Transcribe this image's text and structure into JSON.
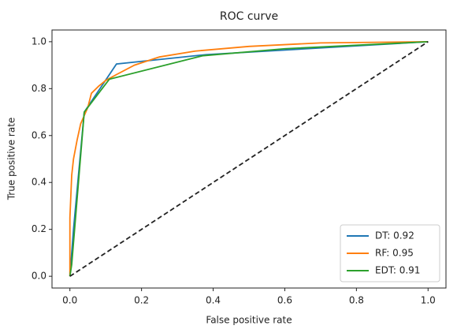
{
  "chart_data": {
    "type": "line",
    "title": "ROC curve",
    "xlabel": "False positive rate",
    "ylabel": "True positive rate",
    "xlim": [
      -0.05,
      1.05
    ],
    "ylim": [
      -0.05,
      1.05
    ],
    "xticks": [
      {
        "value": 0,
        "label": "0.0"
      },
      0.2,
      0.4,
      0.6,
      0.8,
      {
        "value": 1,
        "label": "1.0"
      }
    ],
    "yticks": [
      {
        "value": 0,
        "label": "0.0"
      },
      0.2,
      0.4,
      0.6,
      0.8,
      {
        "value": 1,
        "label": "1.0"
      }
    ],
    "grid": false,
    "legend": "lower right",
    "series": [
      {
        "name": "DT: 0.92",
        "color": "#1f77b4",
        "x": [
          0,
          0.01,
          0.04,
          0.13,
          0.38,
          1
        ],
        "values": [
          0,
          0.2,
          0.7,
          0.905,
          0.945,
          1
        ]
      },
      {
        "name": "RF: 0.95",
        "color": "#ff7f0e",
        "x": [
          0,
          0,
          0.005,
          0.01,
          0.02,
          0.03,
          0.05,
          0.06,
          0.08,
          0.1,
          0.13,
          0.18,
          0.25,
          0.35,
          0.5,
          0.7,
          1
        ],
        "values": [
          0,
          0.25,
          0.43,
          0.5,
          0.58,
          0.65,
          0.72,
          0.78,
          0.81,
          0.835,
          0.86,
          0.9,
          0.935,
          0.96,
          0.98,
          0.995,
          1
        ]
      },
      {
        "name": "EDT: 0.91",
        "color": "#2ca02c",
        "x": [
          0,
          0.005,
          0.04,
          0.11,
          0.37,
          0.6,
          1
        ],
        "values": [
          0,
          0.05,
          0.7,
          0.84,
          0.94,
          0.97,
          1
        ]
      },
      {
        "color": "#222222",
        "dashed": true,
        "x": [
          0,
          1
        ],
        "values": [
          0,
          1
        ]
      }
    ]
  }
}
